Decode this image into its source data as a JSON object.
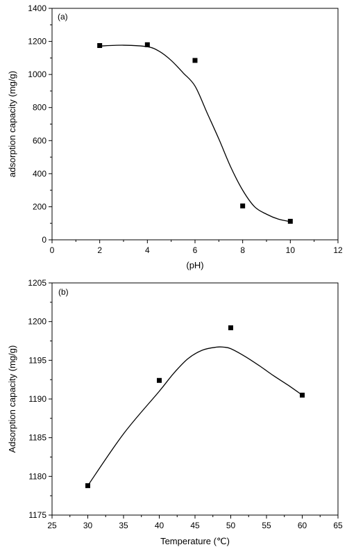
{
  "chart_data": [
    {
      "type": "scatter",
      "panel_label": "(a)",
      "xlabel": "(pH)",
      "ylabel": "adsorption capacity (mg/g)",
      "xlim": [
        0,
        12
      ],
      "ylim": [
        0,
        1400
      ],
      "xticks": [
        0,
        2,
        4,
        6,
        8,
        10,
        12
      ],
      "yticks": [
        0,
        200,
        400,
        600,
        800,
        1000,
        1200,
        1400
      ],
      "grid": false,
      "series": [
        {
          "marker": "square",
          "x": [
            2,
            4,
            6,
            8,
            10
          ],
          "y": [
            1175,
            1180,
            1085,
            205,
            112
          ]
        }
      ],
      "fit_curve": {
        "x": [
          2,
          3,
          4,
          4.5,
          5,
          5.5,
          6,
          6.5,
          7,
          7.5,
          8,
          8.5,
          9,
          9.5,
          10
        ],
        "y": [
          1172,
          1177,
          1168,
          1140,
          1085,
          1010,
          930,
          770,
          610,
          440,
          300,
          200,
          155,
          125,
          110
        ]
      }
    },
    {
      "type": "scatter",
      "panel_label": "(b)",
      "xlabel": "Temperature (℃)",
      "ylabel": "Adsorption capacity (mg/g)",
      "xlim": [
        25,
        65
      ],
      "ylim": [
        1175,
        1205
      ],
      "xticks": [
        25,
        30,
        35,
        40,
        45,
        50,
        55,
        60,
        65
      ],
      "yticks": [
        1175,
        1180,
        1185,
        1190,
        1195,
        1200,
        1205
      ],
      "grid": false,
      "series": [
        {
          "marker": "square",
          "x": [
            30,
            40,
            50,
            60
          ],
          "y": [
            1178.8,
            1192.4,
            1199.2,
            1190.5
          ]
        }
      ],
      "fit_curve": {
        "x": [
          30,
          35,
          40,
          42,
          44,
          46,
          48,
          49,
          50,
          52,
          54,
          56,
          58,
          60
        ],
        "y": [
          1178.8,
          1185.5,
          1191.0,
          1193.3,
          1195.2,
          1196.3,
          1196.7,
          1196.7,
          1196.5,
          1195.5,
          1194.3,
          1193.0,
          1191.8,
          1190.5
        ]
      }
    }
  ]
}
